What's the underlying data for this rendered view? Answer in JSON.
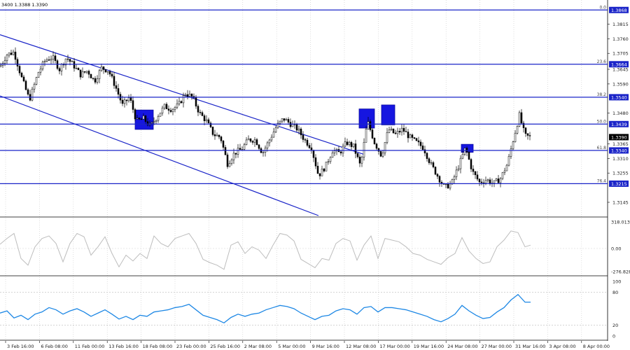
{
  "chart_data": [
    {
      "type": "candlestick",
      "title": "3400 1.3388 1.3390",
      "ylim": [
        1.3095,
        1.3895
      ],
      "y_ticks": [
        "1.3868",
        "1.3815",
        "1.3760",
        "1.3705",
        "1.3650",
        "1.3645",
        "1.3590",
        "1.3535",
        "1.3480",
        "1.3425",
        "1.3365",
        "1.3310",
        "1.3255",
        "1.3200",
        "1.3145"
      ],
      "y_tick_values": [
        1.3868,
        1.3815,
        1.376,
        1.3705,
        1.365,
        1.3645,
        1.359,
        1.3535,
        1.348,
        1.3425,
        1.3365,
        1.331,
        1.3255,
        1.32,
        1.3145
      ],
      "current_price": "1.3390",
      "time_labels": [
        "3 Feb 16:00",
        "6 Feb 08:00",
        "11 Feb 00:00",
        "13 Feb 16:00",
        "18 Feb 08:00",
        "23 Feb 00:00",
        "25 Feb 16:00",
        "2 Mar 08:00",
        "5 Mar 00:00",
        "9 Mar 16:00",
        "12 Mar 08:00",
        "17 Mar 00:00",
        "19 Mar 16:00",
        "24 Mar 08:00",
        "27 Mar 00:00",
        "31 Mar 16:00",
        "3 Apr 08:00",
        "8 Apr 00:00"
      ],
      "fibo_levels": [
        {
          "ratio": "0.0",
          "price": "1.3868"
        },
        {
          "ratio": "23.6",
          "price": "1.3664"
        },
        {
          "ratio": "38.2",
          "price": "1.3540"
        },
        {
          "ratio": "50.0",
          "price": "1.3439"
        },
        {
          "ratio": "61.8",
          "price": "1.3340"
        },
        {
          "ratio": "76.4",
          "price": "1.3215"
        }
      ],
      "trend_channel": {
        "upper": [
          [
            0,
            1.3775
          ],
          [
            520,
            1.3325
          ]
        ],
        "lower": [
          [
            0,
            1.3545
          ],
          [
            455,
            1.3095
          ]
        ]
      },
      "highlight_boxes": [
        {
          "x_from": 193,
          "x_to": 219,
          "high": 1.3492,
          "low": 1.3419
        },
        {
          "x_from": 513,
          "x_to": 535,
          "high": 1.3496,
          "low": 1.3424
        },
        {
          "x_from": 545,
          "x_to": 564,
          "high": 1.3511,
          "low": 1.3436
        },
        {
          "x_from": 659,
          "x_to": 676,
          "high": 1.3363,
          "low": 1.3333
        }
      ],
      "series": [
        {
          "values": [
            [
              0,
              1.3655
            ],
            [
              10,
              1.37
            ],
            [
              20,
              1.371
            ],
            [
              30,
              1.362
            ],
            [
              42,
              1.353
            ],
            [
              55,
              1.3635
            ],
            [
              65,
              1.368
            ],
            [
              75,
              1.369
            ],
            [
              85,
              1.3645
            ],
            [
              95,
              1.369
            ],
            [
              105,
              1.366
            ],
            [
              115,
              1.3625
            ],
            [
              125,
              1.364
            ],
            [
              135,
              1.36
            ],
            [
              145,
              1.365
            ],
            [
              155,
              1.364
            ],
            [
              165,
              1.358
            ],
            [
              175,
              1.351
            ],
            [
              185,
              1.354
            ],
            [
              195,
              1.345
            ],
            [
              205,
              1.346
            ],
            [
              215,
              1.343
            ],
            [
              225,
              1.347
            ],
            [
              235,
              1.3505
            ],
            [
              245,
              1.3495
            ],
            [
              255,
              1.351
            ],
            [
              265,
              1.3555
            ],
            [
              275,
              1.354
            ],
            [
              285,
              1.348
            ],
            [
              295,
              1.345
            ],
            [
              305,
              1.34
            ],
            [
              315,
              1.339
            ],
            [
              325,
              1.329
            ],
            [
              335,
              1.333
            ],
            [
              345,
              1.3345
            ],
            [
              355,
              1.338
            ],
            [
              365,
              1.338
            ],
            [
              375,
              1.333
            ],
            [
              385,
              1.338
            ],
            [
              395,
              1.343
            ],
            [
              405,
              1.346
            ],
            [
              415,
              1.344
            ],
            [
              425,
              1.342
            ],
            [
              435,
              1.338
            ],
            [
              445,
              1.335
            ],
            [
              455,
              1.3245
            ],
            [
              465,
              1.328
            ],
            [
              475,
              1.334
            ],
            [
              485,
              1.333
            ],
            [
              495,
              1.337
            ],
            [
              505,
              1.3355
            ],
            [
              515,
              1.328
            ],
            [
              525,
              1.345
            ],
            [
              535,
              1.337
            ],
            [
              545,
              1.332
            ],
            [
              555,
              1.342
            ],
            [
              565,
              1.34
            ],
            [
              575,
              1.342
            ],
            [
              585,
              1.339
            ],
            [
              595,
              1.337
            ],
            [
              605,
              1.335
            ],
            [
              615,
              1.329
            ],
            [
              625,
              1.3245
            ],
            [
              635,
              1.32
            ],
            [
              645,
              1.3215
            ],
            [
              655,
              1.328
            ],
            [
              665,
              1.335
            ],
            [
              675,
              1.326
            ],
            [
              685,
              1.322
            ],
            [
              695,
              1.323
            ],
            [
              705,
              1.3215
            ],
            [
              715,
              1.3235
            ],
            [
              725,
              1.329
            ],
            [
              735,
              1.34
            ],
            [
              742,
              1.3472
            ],
            [
              750,
              1.3395
            ],
            [
              758,
              1.339
            ]
          ]
        }
      ]
    },
    {
      "type": "line",
      "title": "",
      "y_ticks": [
        "318.013",
        "0.00",
        "-276.828"
      ],
      "ylim": [
        -276.828,
        318.013
      ],
      "series": [
        {
          "color": "#bdbdbd",
          "values": [
            [
              0,
              50
            ],
            [
              10,
              120
            ],
            [
              20,
              180
            ],
            [
              30,
              -120
            ],
            [
              40,
              -200
            ],
            [
              50,
              20
            ],
            [
              60,
              120
            ],
            [
              70,
              150
            ],
            [
              80,
              60
            ],
            [
              90,
              -160
            ],
            [
              100,
              60
            ],
            [
              110,
              180
            ],
            [
              120,
              140
            ],
            [
              130,
              -80
            ],
            [
              140,
              20
            ],
            [
              150,
              140
            ],
            [
              160,
              -60
            ],
            [
              170,
              -220
            ],
            [
              180,
              -80
            ],
            [
              190,
              -150
            ],
            [
              200,
              -60
            ],
            [
              210,
              -120
            ],
            [
              220,
              150
            ],
            [
              230,
              60
            ],
            [
              240,
              20
            ],
            [
              250,
              120
            ],
            [
              260,
              150
            ],
            [
              270,
              180
            ],
            [
              280,
              60
            ],
            [
              290,
              -130
            ],
            [
              300,
              -170
            ],
            [
              310,
              -200
            ],
            [
              320,
              -250
            ],
            [
              330,
              40
            ],
            [
              340,
              80
            ],
            [
              350,
              -60
            ],
            [
              360,
              20
            ],
            [
              370,
              -20
            ],
            [
              380,
              -120
            ],
            [
              390,
              40
            ],
            [
              400,
              180
            ],
            [
              410,
              160
            ],
            [
              420,
              90
            ],
            [
              430,
              -130
            ],
            [
              440,
              -180
            ],
            [
              450,
              -230
            ],
            [
              460,
              -120
            ],
            [
              470,
              -140
            ],
            [
              480,
              60
            ],
            [
              490,
              120
            ],
            [
              500,
              90
            ],
            [
              510,
              -140
            ],
            [
              520,
              40
            ],
            [
              530,
              150
            ],
            [
              540,
              -120
            ],
            [
              550,
              120
            ],
            [
              560,
              100
            ],
            [
              570,
              80
            ],
            [
              580,
              20
            ],
            [
              590,
              -60
            ],
            [
              600,
              -80
            ],
            [
              610,
              -130
            ],
            [
              620,
              -160
            ],
            [
              630,
              -190
            ],
            [
              640,
              -110
            ],
            [
              650,
              -60
            ],
            [
              660,
              130
            ],
            [
              670,
              -30
            ],
            [
              680,
              -120
            ],
            [
              690,
              -180
            ],
            [
              700,
              -160
            ],
            [
              710,
              20
            ],
            [
              720,
              100
            ],
            [
              730,
              210
            ],
            [
              740,
              190
            ],
            [
              750,
              20
            ],
            [
              758,
              40
            ]
          ]
        }
      ]
    },
    {
      "type": "line",
      "title": "",
      "y_ticks": [
        "100",
        "80",
        "20",
        "0"
      ],
      "ylim": [
        0,
        100
      ],
      "series": [
        {
          "color": "#1e88e5",
          "values": [
            [
              0,
              42
            ],
            [
              10,
              46
            ],
            [
              20,
              33
            ],
            [
              30,
              38
            ],
            [
              40,
              30
            ],
            [
              50,
              40
            ],
            [
              60,
              44
            ],
            [
              70,
              52
            ],
            [
              80,
              48
            ],
            [
              90,
              40
            ],
            [
              100,
              46
            ],
            [
              110,
              50
            ],
            [
              120,
              44
            ],
            [
              130,
              36
            ],
            [
              140,
              42
            ],
            [
              150,
              48
            ],
            [
              160,
              40
            ],
            [
              170,
              31
            ],
            [
              180,
              36
            ],
            [
              190,
              30
            ],
            [
              200,
              38
            ],
            [
              210,
              36
            ],
            [
              220,
              44
            ],
            [
              230,
              46
            ],
            [
              240,
              48
            ],
            [
              250,
              52
            ],
            [
              260,
              54
            ],
            [
              270,
              58
            ],
            [
              280,
              48
            ],
            [
              290,
              38
            ],
            [
              300,
              34
            ],
            [
              310,
              30
            ],
            [
              320,
              24
            ],
            [
              330,
              34
            ],
            [
              340,
              40
            ],
            [
              350,
              36
            ],
            [
              360,
              40
            ],
            [
              370,
              42
            ],
            [
              380,
              48
            ],
            [
              390,
              52
            ],
            [
              400,
              56
            ],
            [
              410,
              54
            ],
            [
              420,
              50
            ],
            [
              430,
              42
            ],
            [
              440,
              36
            ],
            [
              450,
              30
            ],
            [
              460,
              36
            ],
            [
              470,
              38
            ],
            [
              480,
              46
            ],
            [
              490,
              50
            ],
            [
              500,
              48
            ],
            [
              510,
              40
            ],
            [
              520,
              52
            ],
            [
              530,
              54
            ],
            [
              540,
              44
            ],
            [
              550,
              52
            ],
            [
              560,
              52
            ],
            [
              570,
              50
            ],
            [
              580,
              48
            ],
            [
              590,
              44
            ],
            [
              600,
              40
            ],
            [
              610,
              36
            ],
            [
              620,
              30
            ],
            [
              630,
              26
            ],
            [
              640,
              32
            ],
            [
              650,
              40
            ],
            [
              660,
              56
            ],
            [
              670,
              46
            ],
            [
              680,
              38
            ],
            [
              690,
              32
            ],
            [
              700,
              34
            ],
            [
              710,
              44
            ],
            [
              720,
              52
            ],
            [
              730,
              66
            ],
            [
              740,
              76
            ],
            [
              750,
              62
            ],
            [
              758,
              62
            ]
          ]
        }
      ]
    }
  ]
}
